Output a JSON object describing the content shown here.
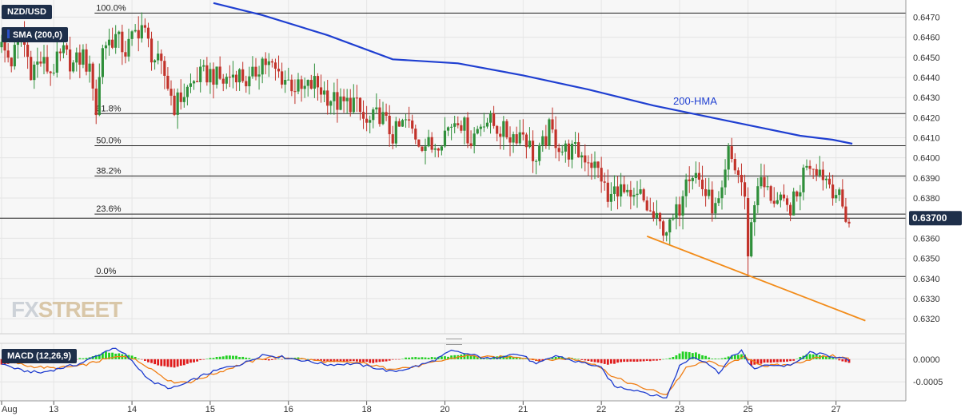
{
  "header": {
    "pair": "NZD/USD",
    "sma_label": "SMA (200,0)"
  },
  "current_price_label": "0.63700",
  "watermark": {
    "fx": "FX",
    "street": "STREET"
  },
  "colors": {
    "up": "#2f8f3a",
    "down": "#c2332b",
    "hma": "#1f3fd1",
    "trend": "#f28c1a",
    "macd_line": "#1e3ccf",
    "signal_line": "#f07f16",
    "hist_pos": "#20d020",
    "hist_neg": "#e01b1b",
    "badge": "#1e2f4a"
  },
  "chart_data": [
    {
      "type": "candlestick",
      "title": "NZD/USD",
      "ylim": [
        0.63125,
        0.64785
      ],
      "yticks": [
        "0.6470",
        "0.6460",
        "0.6450",
        "0.6440",
        "0.6430",
        "0.6420",
        "0.6410",
        "0.6400",
        "0.6390",
        "0.6380",
        "0.6370",
        "0.6360",
        "0.6350",
        "0.6340",
        "0.6330",
        "0.6320"
      ],
      "xticks": [
        {
          "label": "Aug",
          "i": 0
        },
        {
          "label": "13",
          "i": 16
        },
        {
          "label": "14",
          "i": 40
        },
        {
          "label": "15",
          "i": 64
        },
        {
          "label": "16",
          "i": 88
        },
        {
          "label": "18",
          "i": 112
        },
        {
          "label": "20",
          "i": 136
        },
        {
          "label": "21",
          "i": 160
        },
        {
          "label": "22",
          "i": 184
        },
        {
          "label": "23",
          "i": 208
        },
        {
          "label": "25",
          "i": 229
        },
        {
          "label": "27",
          "i": 256
        }
      ],
      "fib_levels": [
        {
          "label": "100.0%",
          "price": 0.6472,
          "start_i": 30
        },
        {
          "label": "61.8%",
          "price": 0.6422,
          "start_i": 30
        },
        {
          "label": "50.0%",
          "price": 0.6406,
          "start_i": 30
        },
        {
          "label": "38.2%",
          "price": 0.6391,
          "start_i": 30
        },
        {
          "label": "23.6%",
          "price": 0.6372,
          "start_i": 30
        },
        {
          "label": "0.0%",
          "price": 0.6341,
          "start_i": 30
        }
      ],
      "current_price": 0.637,
      "hma_label": "200-HMA",
      "hma": [
        {
          "i": 65,
          "p": 0.6477
        },
        {
          "i": 80,
          "p": 0.6471
        },
        {
          "i": 100,
          "p": 0.6461
        },
        {
          "i": 120,
          "p": 0.6449
        },
        {
          "i": 140,
          "p": 0.6447
        },
        {
          "i": 160,
          "p": 0.6441
        },
        {
          "i": 180,
          "p": 0.6434
        },
        {
          "i": 200,
          "p": 0.6426
        },
        {
          "i": 215,
          "p": 0.6421
        },
        {
          "i": 230,
          "p": 0.6416
        },
        {
          "i": 245,
          "p": 0.6411
        },
        {
          "i": 255,
          "p": 0.6409
        },
        {
          "i": 261,
          "p": 0.6407
        }
      ],
      "trendline": [
        {
          "i": 198,
          "p": 0.6361
        },
        {
          "i": 265,
          "p": 0.6319
        }
      ],
      "ohlc_anchors": [
        [
          0,
          0.6455
        ],
        [
          3,
          0.6448
        ],
        [
          6,
          0.6462
        ],
        [
          9,
          0.6444
        ],
        [
          12,
          0.6448
        ],
        [
          15,
          0.6443
        ],
        [
          19,
          0.6452
        ],
        [
          22,
          0.6446
        ],
        [
          25,
          0.6451
        ],
        [
          28,
          0.6438
        ],
        [
          29,
          0.6423
        ],
        [
          31,
          0.6456
        ],
        [
          35,
          0.646
        ],
        [
          38,
          0.6453
        ],
        [
          41,
          0.6462
        ],
        [
          43,
          0.6466
        ],
        [
          46,
          0.6452
        ],
        [
          50,
          0.6441
        ],
        [
          53,
          0.6426
        ],
        [
          56,
          0.6432
        ],
        [
          60,
          0.644
        ],
        [
          64,
          0.6442
        ],
        [
          68,
          0.6438
        ],
        [
          72,
          0.6443
        ],
        [
          76,
          0.6437
        ],
        [
          80,
          0.6449
        ],
        [
          84,
          0.6443
        ],
        [
          88,
          0.6438
        ],
        [
          92,
          0.6433
        ],
        [
          96,
          0.6437
        ],
        [
          100,
          0.6431
        ],
        [
          104,
          0.6426
        ],
        [
          108,
          0.6428
        ],
        [
          112,
          0.6416
        ],
        [
          116,
          0.6422
        ],
        [
          120,
          0.6411
        ],
        [
          124,
          0.6418
        ],
        [
          128,
          0.6409
        ],
        [
          132,
          0.6405
        ],
        [
          136,
          0.6413
        ],
        [
          140,
          0.6421
        ],
        [
          144,
          0.6409
        ],
        [
          148,
          0.642
        ],
        [
          152,
          0.6415
        ],
        [
          156,
          0.6411
        ],
        [
          160,
          0.6413
        ],
        [
          164,
          0.6398
        ],
        [
          168,
          0.6414
        ],
        [
          172,
          0.6404
        ],
        [
          176,
          0.6403
        ],
        [
          180,
          0.64
        ],
        [
          184,
          0.6391
        ],
        [
          186,
          0.6378
        ],
        [
          189,
          0.6386
        ],
        [
          193,
          0.6377
        ],
        [
          196,
          0.6381
        ],
        [
          199,
          0.6372
        ],
        [
          202,
          0.6366
        ],
        [
          205,
          0.6365
        ],
        [
          208,
          0.6376
        ],
        [
          210,
          0.6394
        ],
        [
          213,
          0.6392
        ],
        [
          216,
          0.6382
        ],
        [
          219,
          0.6374
        ],
        [
          221,
          0.638
        ],
        [
          223,
          0.6402
        ],
        [
          225,
          0.6395
        ],
        [
          227,
          0.6388
        ],
        [
          228,
          0.6378
        ],
        [
          229,
          0.635
        ],
        [
          230,
          0.6366
        ],
        [
          232,
          0.6389
        ],
        [
          235,
          0.6383
        ],
        [
          238,
          0.6378
        ],
        [
          241,
          0.6374
        ],
        [
          244,
          0.638
        ],
        [
          247,
          0.6399
        ],
        [
          250,
          0.6396
        ],
        [
          253,
          0.639
        ],
        [
          256,
          0.6383
        ],
        [
          258,
          0.6375
        ],
        [
          260,
          0.6368
        ]
      ],
      "n_candles": 261
    },
    {
      "type": "line",
      "title": "MACD (12,26,9)",
      "ylim": [
        -0.00092,
        0.00035
      ],
      "yticks": [
        "0.0000",
        "-0.0005"
      ],
      "series": [
        {
          "role": "histogram",
          "values_anchors": [
            [
              0,
              -0.00012
            ],
            [
              8,
              -5e-05
            ],
            [
              14,
              2e-05
            ],
            [
              22,
              0.0
            ],
            [
              27,
              4e-05
            ],
            [
              32,
              0.00016
            ],
            [
              40,
              8e-05
            ],
            [
              47,
              -0.00012
            ],
            [
              53,
              -0.00019
            ],
            [
              58,
              -8e-05
            ],
            [
              64,
              2e-05
            ],
            [
              70,
              9e-05
            ],
            [
              76,
              2e-05
            ],
            [
              82,
              -3e-05
            ],
            [
              90,
              4e-05
            ],
            [
              96,
              -2e-05
            ],
            [
              102,
              -6e-05
            ],
            [
              108,
              -4e-05
            ],
            [
              114,
              -8e-05
            ],
            [
              120,
              -2e-05
            ],
            [
              126,
              5e-05
            ],
            [
              131,
              4e-05
            ],
            [
              137,
              6e-05
            ],
            [
              142,
              0.00012
            ],
            [
              148,
              1e-05
            ],
            [
              154,
              8e-05
            ],
            [
              160,
              2e-05
            ],
            [
              165,
              -6e-05
            ],
            [
              170,
              5e-05
            ],
            [
              175,
              2e-05
            ],
            [
              180,
              -3e-05
            ],
            [
              186,
              -0.00012
            ],
            [
              190,
              -7e-05
            ],
            [
              196,
              -5e-05
            ],
            [
              201,
              -3e-05
            ],
            [
              205,
              2e-05
            ],
            [
              209,
              0.00016
            ],
            [
              213,
              0.00014
            ],
            [
              218,
              2e-05
            ],
            [
              221,
              2e-05
            ],
            [
              225,
              0.0001
            ],
            [
              228,
              0.0001
            ],
            [
              230,
              -0.00014
            ],
            [
              234,
              -8e-05
            ],
            [
              239,
              -6e-05
            ],
            [
              243,
              -3e-05
            ],
            [
              247,
              0.00012
            ],
            [
              252,
              8e-05
            ],
            [
              256,
              0.0
            ],
            [
              261,
              -0.00011
            ]
          ]
        },
        {
          "role": "macd",
          "values_anchors": [
            [
              0,
              -0.0001
            ],
            [
              6,
              -0.00025
            ],
            [
              12,
              -0.0003
            ],
            [
              18,
              -0.0002
            ],
            [
              24,
              -0.0001
            ],
            [
              30,
              0.0001
            ],
            [
              34,
              0.00025
            ],
            [
              38,
              0.0001
            ],
            [
              42,
              -0.0002
            ],
            [
              46,
              -0.0005
            ],
            [
              52,
              -0.00065
            ],
            [
              56,
              -0.00055
            ],
            [
              62,
              -0.00035
            ],
            [
              68,
              -0.0002
            ],
            [
              74,
              -0.0001
            ],
            [
              80,
              0.0001
            ],
            [
              86,
              5e-05
            ],
            [
              92,
              -2e-05
            ],
            [
              100,
              -0.00012
            ],
            [
              108,
              -0.0001
            ],
            [
              114,
              -0.00018
            ],
            [
              120,
              -0.00028
            ],
            [
              126,
              -0.00018
            ],
            [
              132,
              -5e-05
            ],
            [
              138,
              0.00018
            ],
            [
              144,
              0.0001
            ],
            [
              150,
              0.0
            ],
            [
              156,
              0.00012
            ],
            [
              160,
              8e-05
            ],
            [
              164,
              -0.00012
            ],
            [
              170,
              8e-05
            ],
            [
              176,
              -5e-05
            ],
            [
              180,
              -0.0001
            ],
            [
              184,
              -0.0002
            ],
            [
              188,
              -0.0006
            ],
            [
              192,
              -0.00065
            ],
            [
              196,
              -0.0007
            ],
            [
              200,
              -0.0008
            ],
            [
              204,
              -0.00085
            ],
            [
              208,
              -0.00015
            ],
            [
              212,
              5e-05
            ],
            [
              216,
              -5e-05
            ],
            [
              220,
              -0.0003
            ],
            [
              224,
              5e-05
            ],
            [
              227,
              0.0002
            ],
            [
              229,
              -0.0001
            ],
            [
              231,
              -0.0002
            ],
            [
              236,
              -0.00012
            ],
            [
              240,
              -0.00015
            ],
            [
              244,
              -8e-05
            ],
            [
              248,
              0.00015
            ],
            [
              252,
              0.0001
            ],
            [
              256,
              5e-05
            ],
            [
              261,
              -5e-05
            ]
          ]
        },
        {
          "role": "signal",
          "values_anchors": [
            [
              0,
              0.0
            ],
            [
              8,
              -0.00015
            ],
            [
              16,
              -0.0002
            ],
            [
              24,
              -0.00015
            ],
            [
              32,
              0.0
            ],
            [
              38,
              8e-05
            ],
            [
              44,
              -0.00012
            ],
            [
              52,
              -0.0005
            ],
            [
              58,
              -0.0005
            ],
            [
              66,
              -0.0003
            ],
            [
              74,
              -0.0001
            ],
            [
              82,
              5e-05
            ],
            [
              90,
              2e-05
            ],
            [
              100,
              -6e-05
            ],
            [
              110,
              -8e-05
            ],
            [
              118,
              -0.0002
            ],
            [
              126,
              -0.00018
            ],
            [
              134,
              -5e-05
            ],
            [
              142,
              8e-05
            ],
            [
              150,
              4e-05
            ],
            [
              158,
              6e-05
            ],
            [
              166,
              -3e-05
            ],
            [
              174,
              2e-05
            ],
            [
              182,
              -0.0001
            ],
            [
              188,
              -0.0004
            ],
            [
              196,
              -0.00062
            ],
            [
              204,
              -0.00078
            ],
            [
              210,
              -0.0002
            ],
            [
              216,
              -5e-05
            ],
            [
              222,
              -0.00015
            ],
            [
              228,
              5e-05
            ],
            [
              234,
              -0.00015
            ],
            [
              242,
              -0.00012
            ],
            [
              248,
              0.0
            ],
            [
              254,
              8e-05
            ],
            [
              261,
              0.0
            ]
          ]
        }
      ]
    }
  ]
}
